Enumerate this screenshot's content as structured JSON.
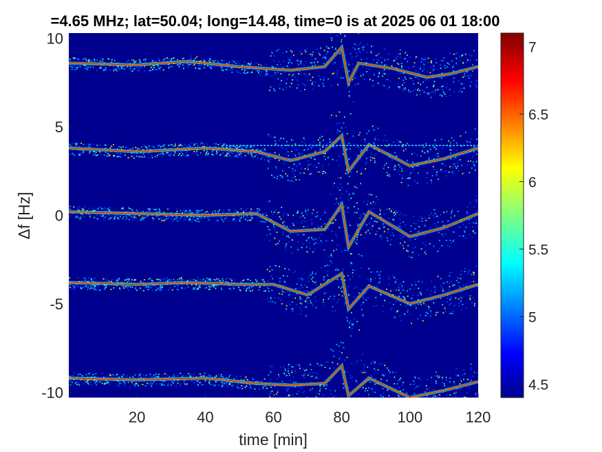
{
  "chart_data": {
    "type": "heatmap",
    "title": "=4.65 MHz;  lat=50.04; long=14.48, time=0 is at 2025 06 01 18:00",
    "xlabel": "time [min]",
    "ylabel": "Δf [Hz]",
    "xlim": [
      0,
      120
    ],
    "ylim": [
      -10.3,
      10.3
    ],
    "xticks": [
      20,
      40,
      60,
      80,
      100,
      120
    ],
    "xtick_labels": [
      "20",
      "40",
      "60",
      "80",
      "100",
      "120"
    ],
    "yticks": [
      10,
      5,
      0,
      -5,
      -10
    ],
    "ytick_labels": [
      "10",
      "5",
      "0",
      "-5",
      "-10"
    ],
    "colorbar": {
      "range": [
        4.4,
        7.1
      ],
      "ticks": [
        7,
        6.5,
        6,
        5.5,
        5,
        4.5
      ],
      "tick_labels": [
        "7",
        "6.5",
        "6",
        "5.5",
        "5",
        "4.5"
      ],
      "colormap": "jet"
    },
    "background_color": "#00008f",
    "grid": false,
    "traces": [
      {
        "baseline": 8.5,
        "points": [
          [
            0,
            8.6
          ],
          [
            20,
            8.5
          ],
          [
            35,
            8.7
          ],
          [
            50,
            8.4
          ],
          [
            65,
            8.2
          ],
          [
            75,
            8.4
          ],
          [
            80,
            9.5
          ],
          [
            82,
            7.5
          ],
          [
            85,
            8.6
          ],
          [
            95,
            8.3
          ],
          [
            105,
            7.8
          ],
          [
            112,
            8.0
          ],
          [
            120,
            8.4
          ]
        ]
      },
      {
        "baseline": 3.8,
        "points": [
          [
            0,
            3.8
          ],
          [
            20,
            3.6
          ],
          [
            40,
            3.8
          ],
          [
            55,
            3.6
          ],
          [
            65,
            3.1
          ],
          [
            75,
            3.6
          ],
          [
            80,
            4.5
          ],
          [
            82,
            2.5
          ],
          [
            88,
            4.0
          ],
          [
            100,
            2.8
          ],
          [
            110,
            3.2
          ],
          [
            120,
            3.8
          ]
        ]
      },
      {
        "baseline": 0.1,
        "points": [
          [
            0,
            0.2
          ],
          [
            20,
            0.1
          ],
          [
            40,
            0.0
          ],
          [
            55,
            0.1
          ],
          [
            65,
            -0.9
          ],
          [
            75,
            -0.8
          ],
          [
            80,
            0.6
          ],
          [
            82,
            -1.8
          ],
          [
            88,
            0.2
          ],
          [
            100,
            -1.2
          ],
          [
            110,
            -0.7
          ],
          [
            120,
            0.1
          ]
        ]
      },
      {
        "baseline": -3.8,
        "points": [
          [
            0,
            -3.8
          ],
          [
            20,
            -3.9
          ],
          [
            35,
            -3.8
          ],
          [
            50,
            -3.9
          ],
          [
            60,
            -3.9
          ],
          [
            70,
            -4.5
          ],
          [
            80,
            -3.3
          ],
          [
            82,
            -5.3
          ],
          [
            88,
            -4.0
          ],
          [
            100,
            -5.0
          ],
          [
            110,
            -4.5
          ],
          [
            120,
            -3.9
          ]
        ]
      },
      {
        "baseline": -9.1,
        "points": [
          [
            0,
            -9.2
          ],
          [
            20,
            -9.3
          ],
          [
            40,
            -9.2
          ],
          [
            55,
            -9.5
          ],
          [
            65,
            -9.6
          ],
          [
            75,
            -9.5
          ],
          [
            80,
            -8.5
          ],
          [
            82,
            -10.2
          ],
          [
            88,
            -9.2
          ],
          [
            100,
            -10.3
          ],
          [
            110,
            -9.9
          ],
          [
            120,
            -9.4
          ]
        ]
      }
    ],
    "flat_line": {
      "y": 3.95,
      "from": 45,
      "to": 120
    }
  }
}
